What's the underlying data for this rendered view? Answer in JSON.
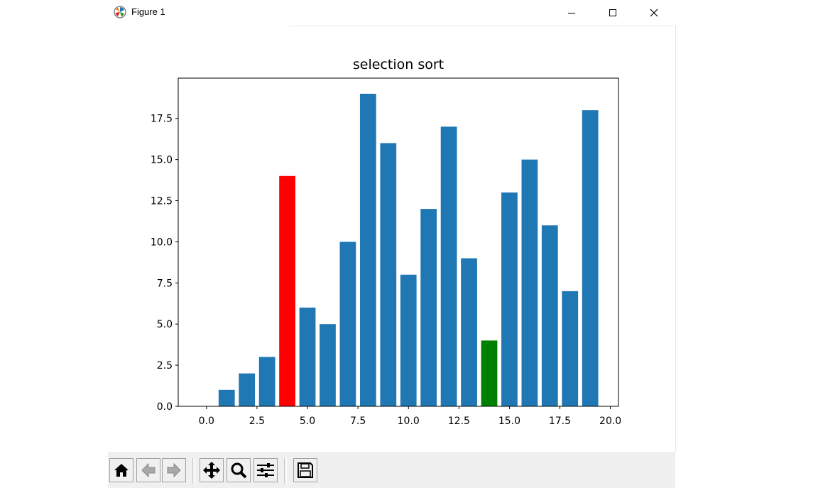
{
  "window": {
    "title": "Figure 1"
  },
  "toolbar": {
    "buttons": [
      {
        "name": "home-button",
        "icon": "home-icon"
      },
      {
        "name": "back-button",
        "icon": "arrow-left-icon"
      },
      {
        "name": "forward-button",
        "icon": "arrow-right-icon"
      },
      {
        "name": "pan-button",
        "icon": "move-icon"
      },
      {
        "name": "zoom-button",
        "icon": "magnifier-icon"
      },
      {
        "name": "configure-subplots-button",
        "icon": "sliders-icon"
      },
      {
        "name": "save-button",
        "icon": "floppy-disk-icon"
      }
    ]
  },
  "chart_data": {
    "type": "bar",
    "title": "selection sort",
    "xlabel": "",
    "ylabel": "",
    "x": [
      0,
      1,
      2,
      3,
      4,
      5,
      6,
      7,
      8,
      9,
      10,
      11,
      12,
      13,
      14,
      15,
      16,
      17,
      18,
      19
    ],
    "values": [
      0,
      1,
      2,
      3,
      14,
      6,
      5,
      10,
      19,
      16,
      8,
      12,
      17,
      9,
      4,
      13,
      15,
      11,
      7,
      18
    ],
    "bar_colors": [
      "#1f77b4",
      "#1f77b4",
      "#1f77b4",
      "#1f77b4",
      "#ff0000",
      "#1f77b4",
      "#1f77b4",
      "#1f77b4",
      "#1f77b4",
      "#1f77b4",
      "#1f77b4",
      "#1f77b4",
      "#1f77b4",
      "#1f77b4",
      "#008000",
      "#1f77b4",
      "#1f77b4",
      "#1f77b4",
      "#1f77b4",
      "#1f77b4"
    ],
    "xlim": [
      -1.4,
      20.4
    ],
    "ylim": [
      0,
      19.95
    ],
    "xticks": [
      0.0,
      2.5,
      5.0,
      7.5,
      10.0,
      12.5,
      15.0,
      17.5,
      20.0
    ],
    "xtick_labels": [
      "0.0",
      "2.5",
      "5.0",
      "7.5",
      "10.0",
      "12.5",
      "15.0",
      "17.5",
      "20.0"
    ],
    "yticks": [
      0.0,
      2.5,
      5.0,
      7.5,
      10.0,
      12.5,
      15.0,
      17.5
    ],
    "ytick_labels": [
      "0.0",
      "2.5",
      "5.0",
      "7.5",
      "10.0",
      "12.5",
      "15.0",
      "17.5"
    ],
    "grid": false,
    "colors": {
      "default": "#1f77b4",
      "current": "#ff0000",
      "minimum": "#008000"
    }
  }
}
